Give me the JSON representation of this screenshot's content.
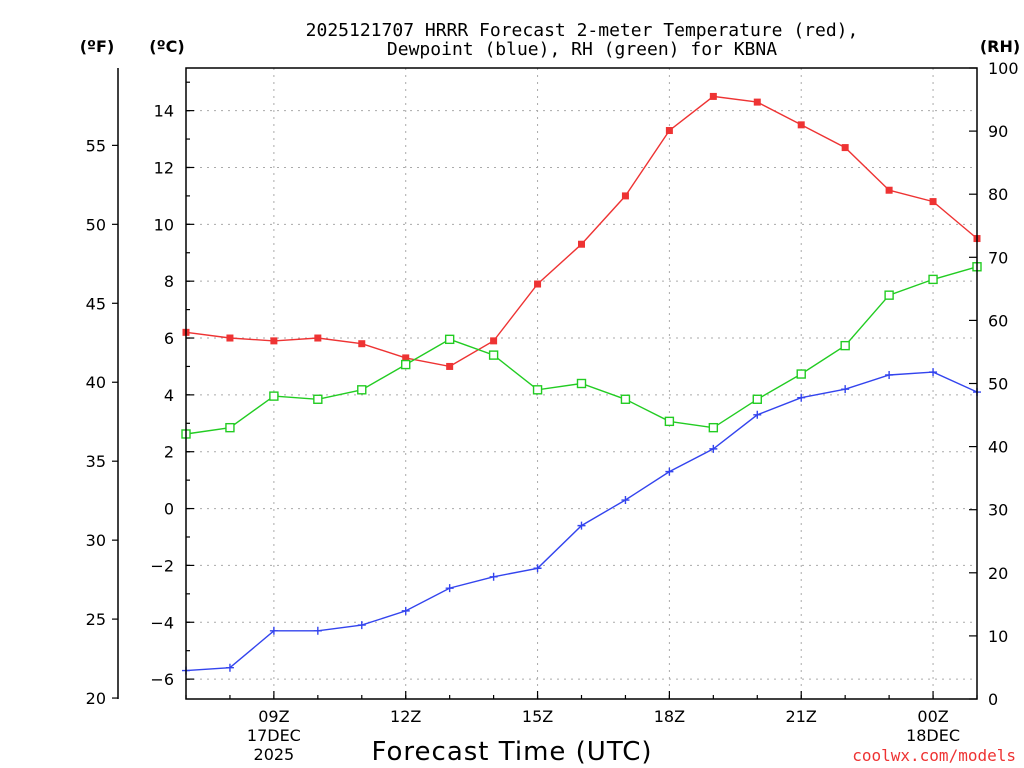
{
  "chart_data": {
    "type": "line",
    "title_line1": "2025121707 HRRR Forecast 2-meter Temperature (red),",
    "title_line2": "Dewpoint (blue), RH (green) for KBNA",
    "xlabel": "Forecast Time (UTC)",
    "credit": "coolwx.com/models",
    "left_outer_axis_label": "(ºF)",
    "left_inner_axis_label": "(ºC)",
    "right_axis_label": "(RH)",
    "x_range": [
      7,
      25
    ],
    "x_ticks": [
      {
        "x": 9,
        "label": "09Z",
        "sub1": "17DEC",
        "sub2": "2025"
      },
      {
        "x": 12,
        "label": "12Z",
        "sub1": "",
        "sub2": ""
      },
      {
        "x": 15,
        "label": "15Z",
        "sub1": "",
        "sub2": ""
      },
      {
        "x": 18,
        "label": "18Z",
        "sub1": "",
        "sub2": ""
      },
      {
        "x": 21,
        "label": "21Z",
        "sub1": "",
        "sub2": ""
      },
      {
        "x": 24,
        "label": "00Z",
        "sub1": "18DEC",
        "sub2": ""
      }
    ],
    "celsius_range": [
      -6.7,
      15.5
    ],
    "celsius_ticks": [
      -6,
      -4,
      -2,
      0,
      2,
      4,
      6,
      8,
      10,
      12,
      14
    ],
    "fahrenheit_ticks": [
      20,
      25,
      30,
      35,
      40,
      45,
      50,
      55
    ],
    "rh_range": [
      0,
      100
    ],
    "rh_ticks": [
      0,
      10,
      20,
      30,
      40,
      50,
      60,
      70,
      80,
      90,
      100
    ],
    "x": [
      7,
      8,
      9,
      10,
      11,
      12,
      13,
      14,
      15,
      16,
      17,
      18,
      19,
      20,
      21,
      22,
      23,
      24,
      25
    ],
    "series": [
      {
        "name": "Temperature",
        "unit": "C",
        "color": "#ee3333",
        "marker": "filled-square",
        "values": [
          6.2,
          6.0,
          5.9,
          6.0,
          5.8,
          5.3,
          5.0,
          5.9,
          7.9,
          9.3,
          11.0,
          13.3,
          14.5,
          14.3,
          13.5,
          12.7,
          11.2,
          10.8,
          9.5
        ]
      },
      {
        "name": "Dewpoint",
        "unit": "C",
        "color": "#3344ee",
        "marker": "plus",
        "values": [
          -5.7,
          -5.6,
          -4.3,
          -4.3,
          -4.1,
          -3.6,
          -2.8,
          -2.4,
          -2.1,
          -0.6,
          0.3,
          1.3,
          2.1,
          3.3,
          3.9,
          4.2,
          4.7,
          4.8,
          4.1
        ]
      },
      {
        "name": "RH",
        "unit": "%",
        "color": "#22cc22",
        "marker": "open-square",
        "values": [
          42,
          43,
          48,
          47.5,
          49,
          53,
          57,
          54.5,
          49,
          50,
          47.5,
          44,
          43,
          47.5,
          51.5,
          56,
          64,
          66.5,
          68.5
        ]
      }
    ]
  }
}
